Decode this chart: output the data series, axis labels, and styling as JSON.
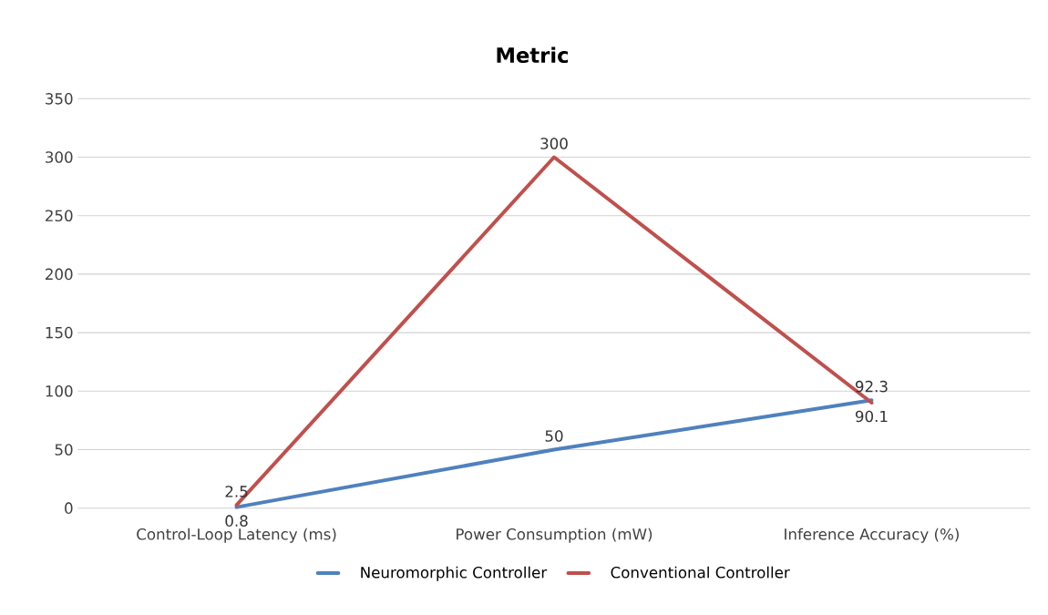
{
  "chart_data": {
    "type": "line",
    "title": "Metric",
    "categories": [
      "Control-Loop Latency (ms)",
      "Power Consumption (mW)",
      "Inference Accuracy (%)"
    ],
    "series": [
      {
        "name": "Neuromorphic Controller",
        "color": "#4f81bd",
        "values": [
          0.8,
          50,
          92.3
        ]
      },
      {
        "name": "Conventional Controller",
        "color": "#c0504d",
        "values": [
          2.5,
          300,
          90.1
        ]
      }
    ],
    "ylim": [
      0,
      350
    ],
    "yticks": [
      0,
      50,
      100,
      150,
      200,
      250,
      300,
      350
    ],
    "grid": "y",
    "legend": "bottom",
    "data_labels": true,
    "marker": "none",
    "line_style": "solid"
  }
}
